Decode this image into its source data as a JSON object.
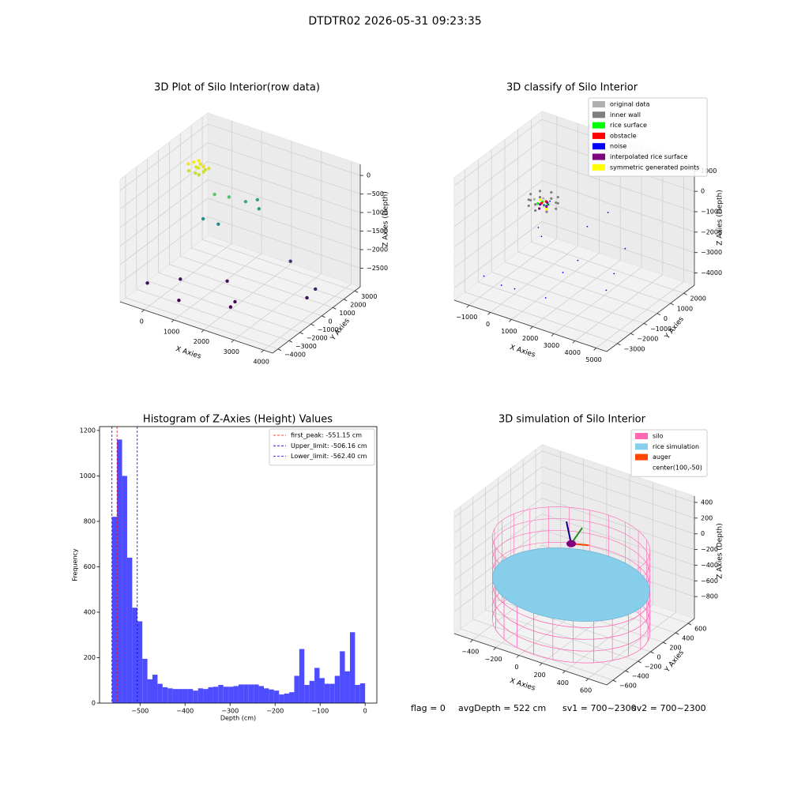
{
  "title": "DTDTR02 2026-05-31 09:23:35",
  "chart_data": [
    {
      "type": "scatter3d",
      "title": "3D Plot of Silo Interior(row data)",
      "xlabel": "X Axies",
      "ylabel": "Y Axies",
      "zlabel": "Z Axies (Depth)",
      "xlim": [
        -800,
        4300
      ],
      "ylim": [
        -4500,
        3500
      ],
      "zlim": [
        -3000,
        300
      ],
      "xticks": [
        0,
        1000,
        2000,
        3000,
        4000
      ],
      "yticks": [
        {
          "value": -4000,
          "label": "−4000"
        },
        {
          "value": -3000,
          "label": "−3000"
        },
        {
          "value": -2000,
          "label": "−2000"
        },
        {
          "value": -1000,
          "label": "−1000"
        },
        0,
        1000,
        2000,
        3000
      ],
      "zticks": [
        {
          "value": -2500,
          "label": "−2500"
        },
        {
          "value": -2000,
          "label": "−2000"
        },
        {
          "value": -1500,
          "label": "−1500"
        },
        {
          "value": -1000,
          "label": "−1000"
        },
        {
          "value": -500,
          "label": "−500"
        },
        0
      ],
      "colormap": "viridis",
      "x": [
        -200,
        -100,
        0,
        100,
        200,
        300,
        -150,
        50,
        250,
        0,
        150,
        -50,
        200,
        600,
        900,
        1200,
        1500,
        400,
        800,
        1300,
        -400,
        300,
        800,
        1500,
        2200,
        2200,
        2700,
        3900,
        3800
      ],
      "y": [
        100,
        300,
        500,
        200,
        400,
        600,
        0,
        50,
        250,
        650,
        100,
        400,
        550,
        300,
        800,
        1500,
        1900,
        -200,
        100,
        2300,
        -3100,
        -2000,
        -3500,
        -1000,
        -2200,
        -2600,
        1500,
        500,
        0
      ],
      "z": [
        -150,
        -120,
        -100,
        -200,
        -180,
        -250,
        -300,
        -320,
        -280,
        -220,
        -350,
        -260,
        -300,
        -800,
        -900,
        -1100,
        -1300,
        -1400,
        -1500,
        -1200,
        -2700,
        -2650,
        -2750,
        -2600,
        -2700,
        -2750,
        -2300,
        -2500,
        -2650
      ]
    },
    {
      "type": "scatter3d",
      "title": "3D classify of Silo Interior",
      "xlabel": "X Axies",
      "ylabel": "Y Axies",
      "zlabel": "Z Axies (Depth)",
      "xlim": [
        -1700,
        5500
      ],
      "ylim": [
        -3800,
        2800
      ],
      "zlim": [
        -4600,
        1400
      ],
      "xticks": [
        {
          "value": -1000,
          "label": "−1000"
        },
        0,
        1000,
        2000,
        3000,
        4000,
        5000
      ],
      "yticks": [
        {
          "value": -3000,
          "label": "−3000"
        },
        {
          "value": -2000,
          "label": "−2000"
        },
        {
          "value": -1000,
          "label": "−1000"
        },
        0,
        1000,
        2000
      ],
      "zticks": [
        {
          "value": -4000,
          "label": "−4000"
        },
        {
          "value": -3000,
          "label": "−3000"
        },
        {
          "value": -2000,
          "label": "−2000"
        },
        {
          "value": -1000,
          "label": "−1000"
        },
        0,
        1000
      ],
      "legend": "upper right",
      "series": [
        {
          "name": "original data",
          "color": "#b0b0b0",
          "points": [
            [
              1000,
              -1400,
              150
            ],
            [
              700,
              -1600,
              100
            ]
          ]
        },
        {
          "name": "inner wall",
          "color": "#808080",
          "points": [
            [
              1600,
              -1400,
              150
            ],
            [
              1424,
              -976,
              150
            ],
            [
              1000,
              -800,
              150
            ],
            [
              576,
              -976,
              150
            ],
            [
              400,
              -1400,
              150
            ],
            [
              576,
              -1824,
              150
            ],
            [
              1000,
              -2000,
              150
            ],
            [
              1424,
              -1824,
              150
            ],
            [
              1600,
              -1400,
              -150
            ],
            [
              1424,
              -976,
              -150
            ],
            [
              1000,
              -800,
              -150
            ],
            [
              576,
              -976,
              -150
            ],
            [
              400,
              -1400,
              -150
            ],
            [
              576,
              -1824,
              -150
            ],
            [
              1000,
              -2000,
              -150
            ],
            [
              1424,
              -1824,
              -150
            ]
          ]
        },
        {
          "name": "rice surface",
          "color": "#00ff00",
          "points": [
            [
              900,
              -1300,
              -100
            ],
            [
              1100,
              -1500,
              -100
            ],
            [
              800,
              -1500,
              -120
            ],
            [
              1000,
              -1200,
              -90
            ],
            [
              1200,
              -1350,
              -110
            ]
          ]
        },
        {
          "name": "obstacle",
          "color": "#ff0000",
          "points": [
            [
              950,
              -1450,
              -80
            ],
            [
              1050,
              -1250,
              -60
            ]
          ]
        },
        {
          "name": "noise",
          "color": "#0000ff",
          "points": [
            [
              1300,
              -1500,
              0
            ],
            [
              1250,
              -1300,
              50
            ],
            [
              1150,
              -1600,
              -30
            ],
            [
              -800,
              -3000,
              -3500
            ],
            [
              -100,
              -2800,
              -3800
            ],
            [
              400,
              -2600,
              -3900
            ],
            [
              1800,
              -2500,
              -3900
            ],
            [
              1800,
              -1200,
              -3300
            ],
            [
              1500,
              400,
              -3600
            ],
            [
              200,
              -500,
              -2000
            ],
            [
              600,
              -900,
              -2100
            ],
            [
              2200,
              0,
              -1500
            ],
            [
              2800,
              600,
              -900
            ],
            [
              4300,
              -500,
              -1600
            ],
            [
              4400,
              -1500,
              -2300
            ],
            [
              4600,
              -2400,
              -2600
            ]
          ]
        },
        {
          "name": "interpolated rice surface",
          "color": "#800080",
          "points": [
            [
              850,
              -1400,
              -200
            ],
            [
              1150,
              -1400,
              -200
            ],
            [
              1000,
              -1700,
              -200
            ],
            [
              1000,
              -1100,
              -200
            ]
          ]
        },
        {
          "name": "symmetric generated points",
          "color": "#ffff00",
          "points": [
            [
              700,
              -1150,
              -150
            ],
            [
              1300,
              -1650,
              -150
            ]
          ]
        }
      ]
    },
    {
      "type": "histogram",
      "title": "Histogram of Z-Axies (Height) Values",
      "xlabel": "Depth (cm)",
      "ylabel": "Frequency",
      "color": "#4d4dff",
      "xlim": [
        -590,
        26
      ],
      "ylim": [
        0,
        1217
      ],
      "xticks": [
        {
          "value": -500,
          "label": "−500"
        },
        {
          "value": -400,
          "label": "−400"
        },
        {
          "value": -300,
          "label": "−300"
        },
        {
          "value": -200,
          "label": "−200"
        },
        {
          "value": -100,
          "label": "−100"
        },
        0
      ],
      "yticks": [
        0,
        200,
        400,
        600,
        800,
        1000,
        1200
      ],
      "bins": [
        -562.4,
        -551.152,
        -539.904,
        -528.656,
        -517.408,
        -506.16,
        -494.912,
        -483.664,
        -472.416,
        -461.168,
        -449.92,
        -438.672,
        -427.424,
        -416.176,
        -404.928,
        -393.68,
        -382.432,
        -371.184,
        -359.936,
        -348.688,
        -337.44,
        -326.192,
        -314.944,
        -303.696,
        -292.448,
        -281.2,
        -269.952,
        -258.704,
        -247.456,
        -236.208,
        -224.96,
        -213.712,
        -202.464,
        -191.216,
        -179.968,
        -168.72,
        -157.472,
        -146.224,
        -134.976,
        -123.728,
        -112.48,
        -101.232,
        -89.984,
        -78.736,
        -67.488,
        -56.24,
        -44.992,
        -33.744,
        -22.496,
        -11.248,
        0
      ],
      "counts": [
        820,
        1160,
        1000,
        640,
        420,
        360,
        195,
        105,
        125,
        85,
        70,
        65,
        62,
        62,
        62,
        62,
        55,
        65,
        62,
        70,
        72,
        80,
        72,
        72,
        75,
        82,
        82,
        82,
        82,
        75,
        65,
        60,
        55,
        38,
        42,
        48,
        120,
        238,
        80,
        98,
        155,
        110,
        85,
        85,
        120,
        228,
        140,
        312,
        80,
        87
      ],
      "legend": "upper right",
      "lines": [
        {
          "name": "first_peak: -551.15 cm",
          "value": -551.15,
          "color": "#ff0000"
        },
        {
          "name": "Upper_limit: -506.16 cm",
          "value": -506.16,
          "color": "#0000ff"
        },
        {
          "name": "Lower_limit: -562.40 cm",
          "value": -562.4,
          "color": "#0000ff"
        }
      ]
    },
    {
      "type": "silo3d",
      "title": "3D simulation of Silo Interior",
      "xlabel": "X Axies",
      "ylabel": "Y Axies",
      "zlabel": "Z Axies (Depth)",
      "xlim": [
        -560,
        760
      ],
      "ylim": [
        -700,
        700
      ],
      "zlim": [
        -1080,
        480
      ],
      "xticks": [
        {
          "value": -400,
          "label": "−400"
        },
        {
          "value": -200,
          "label": "−200"
        },
        0,
        200,
        400,
        600
      ],
      "yticks": [
        {
          "value": -600,
          "label": "−600"
        },
        {
          "value": -400,
          "label": "−400"
        },
        {
          "value": -200,
          "label": "−200"
        },
        0,
        200,
        400,
        600
      ],
      "zticks": [
        {
          "value": -800,
          "label": "−800"
        },
        {
          "value": -600,
          "label": "−600"
        },
        {
          "value": -400,
          "label": "−400"
        },
        {
          "value": -200,
          "label": "−200"
        },
        0,
        200,
        400
      ],
      "center": [
        100,
        -50
      ],
      "legend": "upper right",
      "series": [
        {
          "name": "silo",
          "color": "#ff69b4",
          "radius": 600,
          "top": 0,
          "bottom": -1050
        },
        {
          "name": "rice simulation",
          "color": "#87ceeb",
          "level": -522
        },
        {
          "name": "auger",
          "color": "#ff4500"
        },
        {
          "name": "center(100,-50)"
        }
      ],
      "annotations": [
        "flag = 0",
        "avgDepth = 522 cm",
        "sv1 = 700~2300",
        "sv2 = 700~2300"
      ]
    }
  ]
}
